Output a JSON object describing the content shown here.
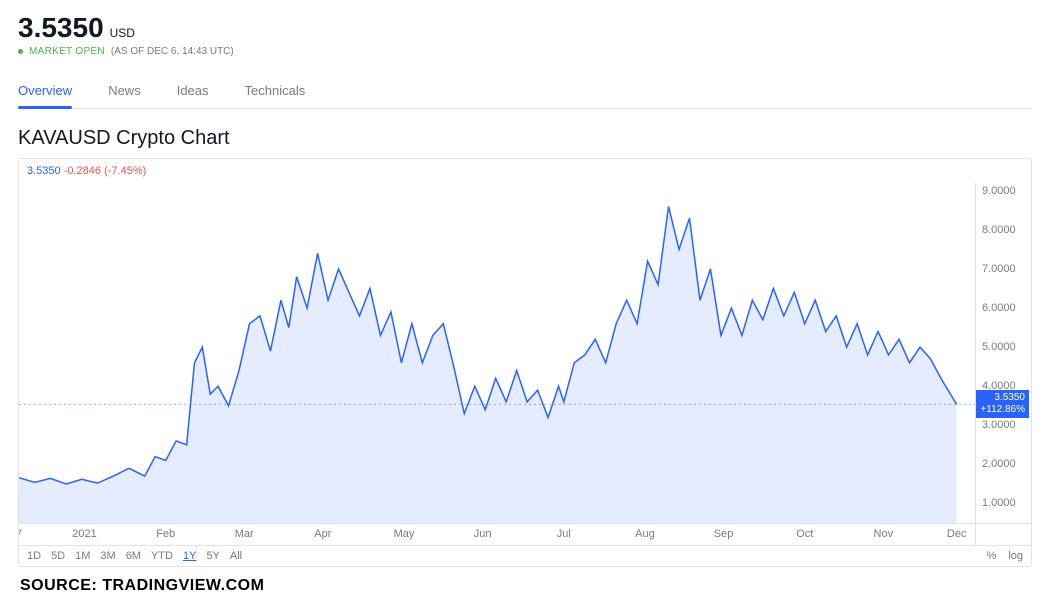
{
  "header": {
    "price": "3.5350",
    "currency": "USD",
    "market_status": "MARKET OPEN",
    "asof": "(AS OF DEC 6, 14:43 UTC)"
  },
  "tabs": [
    {
      "label": "Overview",
      "active": true
    },
    {
      "label": "News",
      "active": false
    },
    {
      "label": "Ideas",
      "active": false
    },
    {
      "label": "Technicals",
      "active": false
    }
  ],
  "chart": {
    "title": "KAVAUSD Crypto Chart",
    "type": "area",
    "hover_price": "3.5350",
    "hover_change": "-0.2846 (-7.45%)",
    "line_color": "#2962ff",
    "fill_color": "rgba(41,98,255,0.12)",
    "background_color": "#ffffff",
    "grid_color": "#e0e3eb",
    "y_axis": {
      "min": 0.5,
      "max": 9.2,
      "ticks": [
        1.0,
        2.0,
        3.0,
        4.0,
        5.0,
        6.0,
        7.0,
        8.0,
        9.0
      ],
      "tick_labels": [
        "1.0000",
        "2.0000",
        "3.0000",
        "4.0000",
        "5.0000",
        "6.0000",
        "7.0000",
        "8.0000",
        "9.0000"
      ]
    },
    "x_axis": {
      "min": 0,
      "max": 365,
      "ticks": [
        0,
        25,
        56,
        86,
        116,
        147,
        177,
        208,
        239,
        269,
        300,
        330,
        358
      ],
      "tick_labels": [
        "7",
        "2021",
        "Feb",
        "Mar",
        "Apr",
        "May",
        "Jun",
        "Jul",
        "Aug",
        "Sep",
        "Oct",
        "Nov",
        "Dec"
      ]
    },
    "current_price": 3.535,
    "price_tag": {
      "line1": "3.5350",
      "line2": "+112.86%"
    },
    "series": [
      {
        "x": 0,
        "y": 1.66
      },
      {
        "x": 6,
        "y": 1.54
      },
      {
        "x": 12,
        "y": 1.64
      },
      {
        "x": 18,
        "y": 1.5
      },
      {
        "x": 24,
        "y": 1.62
      },
      {
        "x": 30,
        "y": 1.52
      },
      {
        "x": 36,
        "y": 1.7
      },
      {
        "x": 42,
        "y": 1.9
      },
      {
        "x": 48,
        "y": 1.7
      },
      {
        "x": 52,
        "y": 2.2
      },
      {
        "x": 56,
        "y": 2.1
      },
      {
        "x": 60,
        "y": 2.6
      },
      {
        "x": 64,
        "y": 2.5
      },
      {
        "x": 67,
        "y": 4.6
      },
      {
        "x": 70,
        "y": 5.0
      },
      {
        "x": 73,
        "y": 3.8
      },
      {
        "x": 76,
        "y": 4.0
      },
      {
        "x": 80,
        "y": 3.5
      },
      {
        "x": 84,
        "y": 4.4
      },
      {
        "x": 88,
        "y": 5.6
      },
      {
        "x": 92,
        "y": 5.8
      },
      {
        "x": 96,
        "y": 4.9
      },
      {
        "x": 100,
        "y": 6.2
      },
      {
        "x": 103,
        "y": 5.5
      },
      {
        "x": 106,
        "y": 6.8
      },
      {
        "x": 110,
        "y": 6.0
      },
      {
        "x": 114,
        "y": 7.4
      },
      {
        "x": 118,
        "y": 6.2
      },
      {
        "x": 122,
        "y": 7.0
      },
      {
        "x": 126,
        "y": 6.4
      },
      {
        "x": 130,
        "y": 5.8
      },
      {
        "x": 134,
        "y": 6.5
      },
      {
        "x": 138,
        "y": 5.3
      },
      {
        "x": 142,
        "y": 5.9
      },
      {
        "x": 146,
        "y": 4.6
      },
      {
        "x": 150,
        "y": 5.6
      },
      {
        "x": 154,
        "y": 4.6
      },
      {
        "x": 158,
        "y": 5.3
      },
      {
        "x": 162,
        "y": 5.6
      },
      {
        "x": 166,
        "y": 4.5
      },
      {
        "x": 170,
        "y": 3.3
      },
      {
        "x": 174,
        "y": 4.0
      },
      {
        "x": 178,
        "y": 3.4
      },
      {
        "x": 182,
        "y": 4.2
      },
      {
        "x": 186,
        "y": 3.6
      },
      {
        "x": 190,
        "y": 4.4
      },
      {
        "x": 194,
        "y": 3.6
      },
      {
        "x": 198,
        "y": 3.9
      },
      {
        "x": 202,
        "y": 3.2
      },
      {
        "x": 206,
        "y": 4.0
      },
      {
        "x": 208,
        "y": 3.6
      },
      {
        "x": 212,
        "y": 4.6
      },
      {
        "x": 216,
        "y": 4.8
      },
      {
        "x": 220,
        "y": 5.2
      },
      {
        "x": 224,
        "y": 4.6
      },
      {
        "x": 228,
        "y": 5.6
      },
      {
        "x": 232,
        "y": 6.2
      },
      {
        "x": 236,
        "y": 5.6
      },
      {
        "x": 240,
        "y": 7.2
      },
      {
        "x": 244,
        "y": 6.6
      },
      {
        "x": 248,
        "y": 8.6
      },
      {
        "x": 252,
        "y": 7.5
      },
      {
        "x": 256,
        "y": 8.3
      },
      {
        "x": 260,
        "y": 6.2
      },
      {
        "x": 264,
        "y": 7.0
      },
      {
        "x": 268,
        "y": 5.3
      },
      {
        "x": 272,
        "y": 6.0
      },
      {
        "x": 276,
        "y": 5.3
      },
      {
        "x": 280,
        "y": 6.2
      },
      {
        "x": 284,
        "y": 5.7
      },
      {
        "x": 288,
        "y": 6.5
      },
      {
        "x": 292,
        "y": 5.8
      },
      {
        "x": 296,
        "y": 6.4
      },
      {
        "x": 300,
        "y": 5.6
      },
      {
        "x": 304,
        "y": 6.2
      },
      {
        "x": 308,
        "y": 5.4
      },
      {
        "x": 312,
        "y": 5.8
      },
      {
        "x": 316,
        "y": 5.0
      },
      {
        "x": 320,
        "y": 5.6
      },
      {
        "x": 324,
        "y": 4.8
      },
      {
        "x": 328,
        "y": 5.4
      },
      {
        "x": 332,
        "y": 4.8
      },
      {
        "x": 336,
        "y": 5.2
      },
      {
        "x": 340,
        "y": 4.6
      },
      {
        "x": 344,
        "y": 5.0
      },
      {
        "x": 348,
        "y": 4.7
      },
      {
        "x": 352,
        "y": 4.2
      },
      {
        "x": 358,
        "y": 3.535
      }
    ]
  },
  "ranges": [
    {
      "label": "1D",
      "active": false
    },
    {
      "label": "5D",
      "active": false
    },
    {
      "label": "1M",
      "active": false
    },
    {
      "label": "3M",
      "active": false
    },
    {
      "label": "6M",
      "active": false
    },
    {
      "label": "YTD",
      "active": false
    },
    {
      "label": "1Y",
      "active": true
    },
    {
      "label": "5Y",
      "active": false
    },
    {
      "label": "All",
      "active": false
    }
  ],
  "scale_buttons": [
    {
      "label": "%"
    },
    {
      "label": "log"
    }
  ],
  "source": "SOURCE: TRADINGVIEW.COM"
}
